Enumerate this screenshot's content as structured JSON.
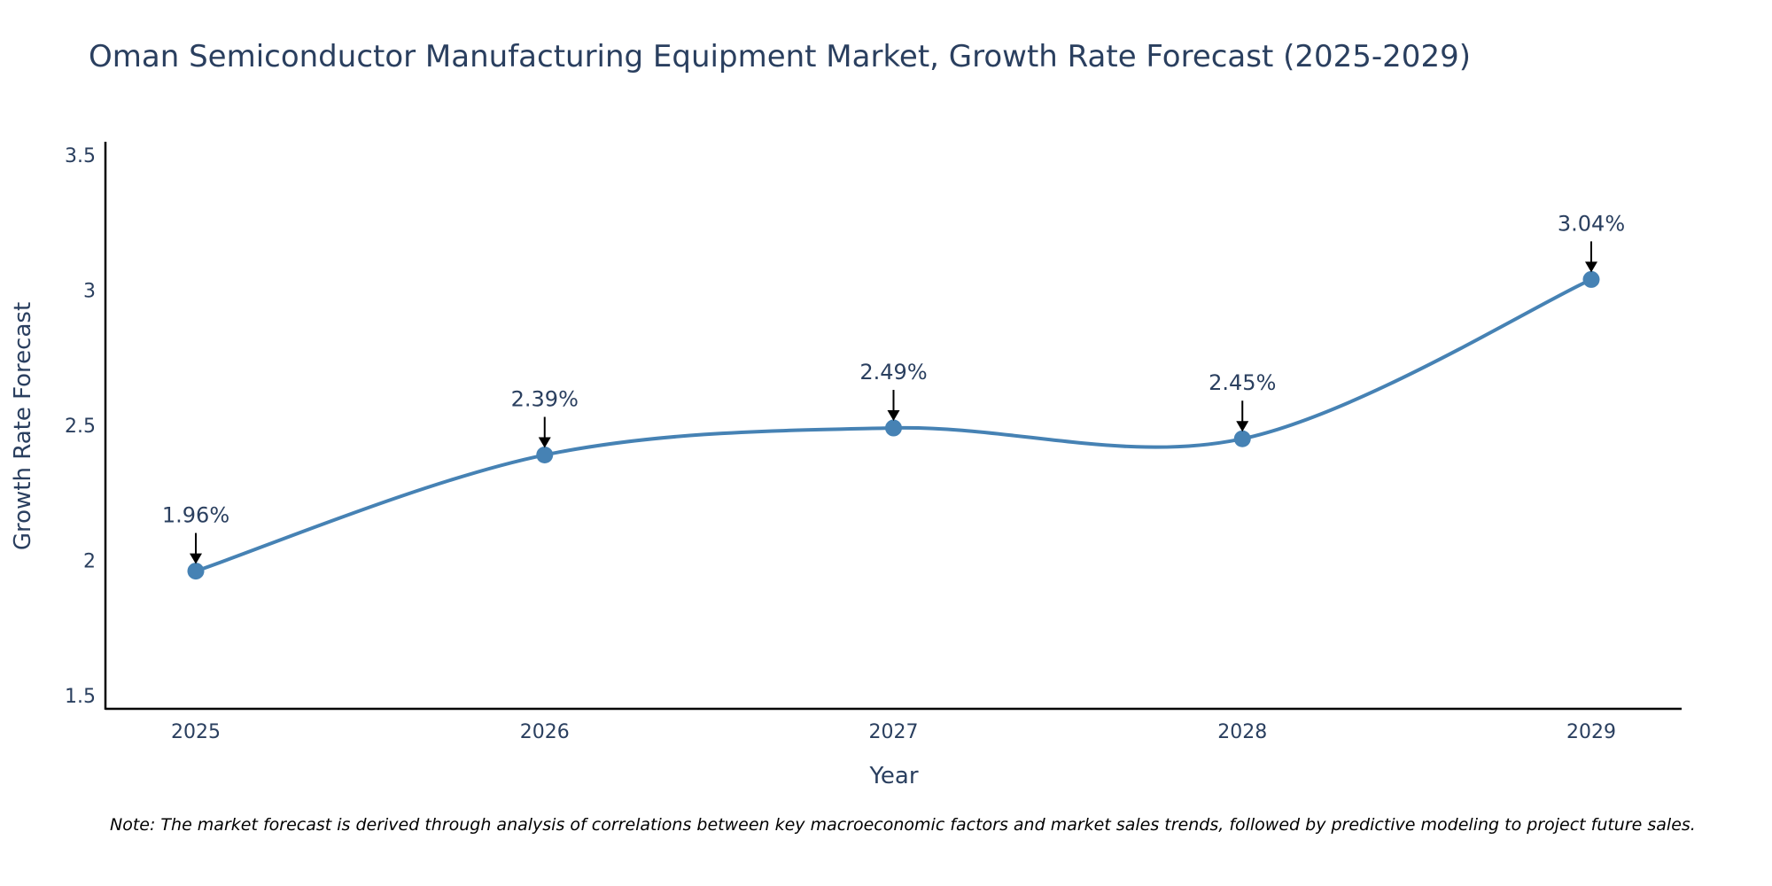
{
  "chart_data": {
    "type": "line",
    "title": "Oman Semiconductor Manufacturing Equipment Market, Growth Rate Forecast (2025-2029)",
    "xlabel": "Year",
    "ylabel": "Growth Rate Forecast",
    "categories": [
      "2025",
      "2026",
      "2027",
      "2028",
      "2029"
    ],
    "series": [
      {
        "name": "Growth Rate Forecast",
        "values": [
          1.96,
          2.39,
          2.49,
          2.45,
          3.04
        ],
        "labels": [
          "1.96%",
          "2.39%",
          "2.49%",
          "2.45%",
          "3.04%"
        ],
        "color": "#4682b4"
      }
    ],
    "ylim": [
      1.45,
      3.55
    ],
    "yticks": [
      1.5,
      2,
      2.5,
      3,
      3.5
    ],
    "ytick_labels": [
      "1.5",
      "2",
      "2.5",
      "3",
      "3.5"
    ],
    "grid": false,
    "line_shape": "spline"
  },
  "note": "Note: The market forecast is derived through analysis of correlations between key macroeconomic factors and market sales trends, followed by predictive modeling to project future sales."
}
